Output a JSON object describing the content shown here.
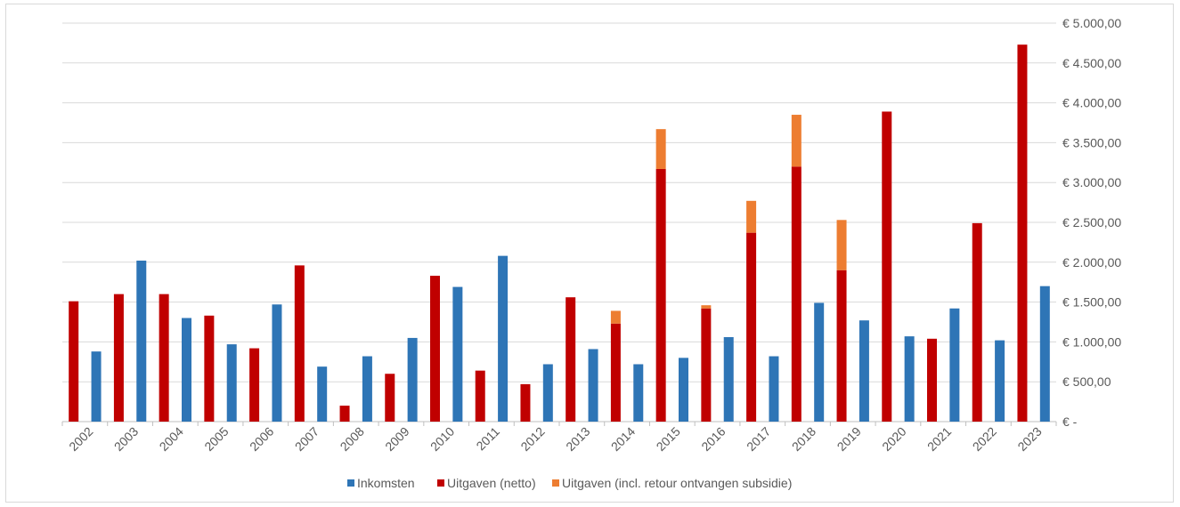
{
  "chart_data": {
    "type": "bar",
    "categories": [
      "2002",
      "2003",
      "2004",
      "2005",
      "2006",
      "2007",
      "2008",
      "2009",
      "2010",
      "2011",
      "2012",
      "2013",
      "2014",
      "2015",
      "2016",
      "2017",
      "2018",
      "2019",
      "2020",
      "2021",
      "2022",
      "2023"
    ],
    "bars": [
      {
        "series": "Uitgaven (netto)",
        "value": 1510
      },
      {
        "series": "Inkomsten",
        "value": 880
      },
      {
        "series": "Uitgaven (netto)",
        "value": 1600
      },
      {
        "series": "Inkomsten",
        "value": 2020
      },
      {
        "series": "Uitgaven (netto)",
        "value": 1600
      },
      {
        "series": "Inkomsten",
        "value": 1300
      },
      {
        "series": "Uitgaven (netto)",
        "value": 1330
      },
      {
        "series": "Inkomsten",
        "value": 970
      },
      {
        "series": "Uitgaven (netto)",
        "value": 920
      },
      {
        "series": "Inkomsten",
        "value": 1470
      },
      {
        "series": "Uitgaven (netto)",
        "value": 1960
      },
      {
        "series": "Inkomsten",
        "value": 690
      },
      {
        "series": "Uitgaven (netto)",
        "value": 200
      },
      {
        "series": "Inkomsten",
        "value": 820
      },
      {
        "series": "Uitgaven (netto)",
        "value": 600
      },
      {
        "series": "Inkomsten",
        "value": 1050
      },
      {
        "series": "Uitgaven (netto)",
        "value": 1830
      },
      {
        "series": "Inkomsten",
        "value": 1690
      },
      {
        "series": "Uitgaven (netto)",
        "value": 640
      },
      {
        "series": "Inkomsten",
        "value": 2080
      },
      {
        "series": "Uitgaven (netto)",
        "value": 470
      },
      {
        "series": "Inkomsten",
        "value": 720
      },
      {
        "series": "Uitgaven (netto)",
        "value": 1560
      },
      {
        "series": "Inkomsten",
        "value": 910
      },
      {
        "series": "Uitgaven (netto)",
        "value": 1230,
        "extra": 160
      },
      {
        "series": "Inkomsten",
        "value": 720
      },
      {
        "series": "Uitgaven (netto)",
        "value": 3170,
        "extra": 500
      },
      {
        "series": "Inkomsten",
        "value": 800
      },
      {
        "series": "Uitgaven (netto)",
        "value": 1420,
        "extra": 40
      },
      {
        "series": "Inkomsten",
        "value": 1060
      },
      {
        "series": "Uitgaven (netto)",
        "value": 2370,
        "extra": 400
      },
      {
        "series": "Inkomsten",
        "value": 820
      },
      {
        "series": "Uitgaven (netto)",
        "value": 3200,
        "extra": 650
      },
      {
        "series": "Inkomsten",
        "value": 1490
      },
      {
        "series": "Uitgaven (netto)",
        "value": 1900,
        "extra": 630
      },
      {
        "series": "Inkomsten",
        "value": 1270
      },
      {
        "series": "Uitgaven (netto)",
        "value": 3890
      },
      {
        "series": "Inkomsten",
        "value": 1070
      },
      {
        "series": "Uitgaven (netto)",
        "value": 1040
      },
      {
        "series": "Inkomsten",
        "value": 1420
      },
      {
        "series": "Uitgaven (netto)",
        "value": 2490
      },
      {
        "series": "Inkomsten",
        "value": 1020
      },
      {
        "series": "Uitgaven (netto)",
        "value": 4730
      },
      {
        "series": "Inkomsten",
        "value": 1700
      }
    ],
    "series": [
      {
        "name": "Inkomsten",
        "color": "#2e75b6"
      },
      {
        "name": "Uitgaven (netto)",
        "color": "#c00000"
      },
      {
        "name": "Uitgaven (incl. retour ontvangen subsidie)",
        "color": "#ed7d31"
      }
    ],
    "ylim": [
      0,
      5000
    ],
    "yticks": [
      0,
      500,
      1000,
      1500,
      2000,
      2500,
      3000,
      3500,
      4000,
      4500,
      5000
    ],
    "ytick_labels": [
      "€ -",
      "€ 500,00",
      "€ 1.000,00",
      "€ 1.500,00",
      "€ 2.000,00",
      "€ 2.500,00",
      "€ 3.000,00",
      "€ 3.500,00",
      "€ 4.000,00",
      "€ 4.500,00",
      "€ 5.000,00"
    ],
    "y_axis_position": "right",
    "grid": true,
    "legend_position": "bottom"
  }
}
